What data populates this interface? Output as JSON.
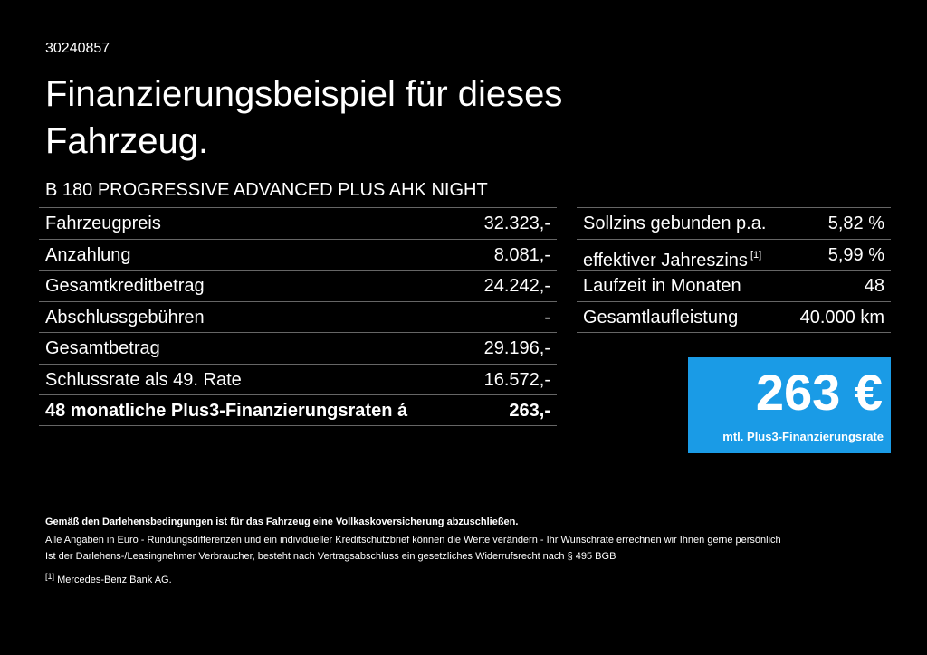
{
  "header": {
    "id": "30240857",
    "title_lines": [
      "Finanzierungsbeispiel für dieses",
      "Fahrzeug."
    ]
  },
  "model": "B 180 PROGRESSIVE ADVANCED PLUS AHK NIGHT",
  "left_table": {
    "rows": [
      [
        "Fahrzeugpreis",
        "32.323,-"
      ],
      [
        "Anzahlung",
        "8.081,-"
      ],
      [
        "Gesamtkreditbetrag",
        "24.242,-"
      ],
      [
        "Abschlussgebühren",
        "-"
      ],
      [
        "Gesamtbetrag",
        "29.196,-"
      ],
      [
        "Schlussrate als 49. Rate",
        "16.572,-"
      ],
      [
        "48 monatliche Plus3-Finanzierungsraten á",
        "263,-"
      ]
    ]
  },
  "right_table": {
    "rows": [
      {
        "label": "Sollzins gebunden p.a.",
        "value": "5,82 %"
      },
      {
        "label": "effektiver Jahreszins",
        "sup": "[1]",
        "value": "5,99 %"
      },
      {
        "label": "Laufzeit in Monaten",
        "value": "48"
      },
      {
        "label": "Gesamtlaufleistung",
        "value": "40.000 km"
      }
    ]
  },
  "rate_box": {
    "amount": "263 €",
    "caption": "mtl. Plus3-Finanzierungsrate"
  },
  "footnotes": {
    "bold": "Gemäß den Darlehensbedingungen ist für das Fahrzeug eine Vollkaskoversicherung abzuschließen.",
    "lines": [
      "Alle Angaben in Euro - Rundungsdifferenzen und ein individueller Kreditschutzbrief können die Werte verändern - Ihr Wunschrate errechnen wir Ihnen gerne persönlich",
      "Ist der Darlehens-/Leasingnehmer Verbraucher, besteht nach Vertragsabschluss ein gesetzliches Widerrufsrecht nach § 495 BGB"
    ],
    "ref_mark": "[1]",
    "ref_text": "Mercedes-Benz Bank AG."
  }
}
